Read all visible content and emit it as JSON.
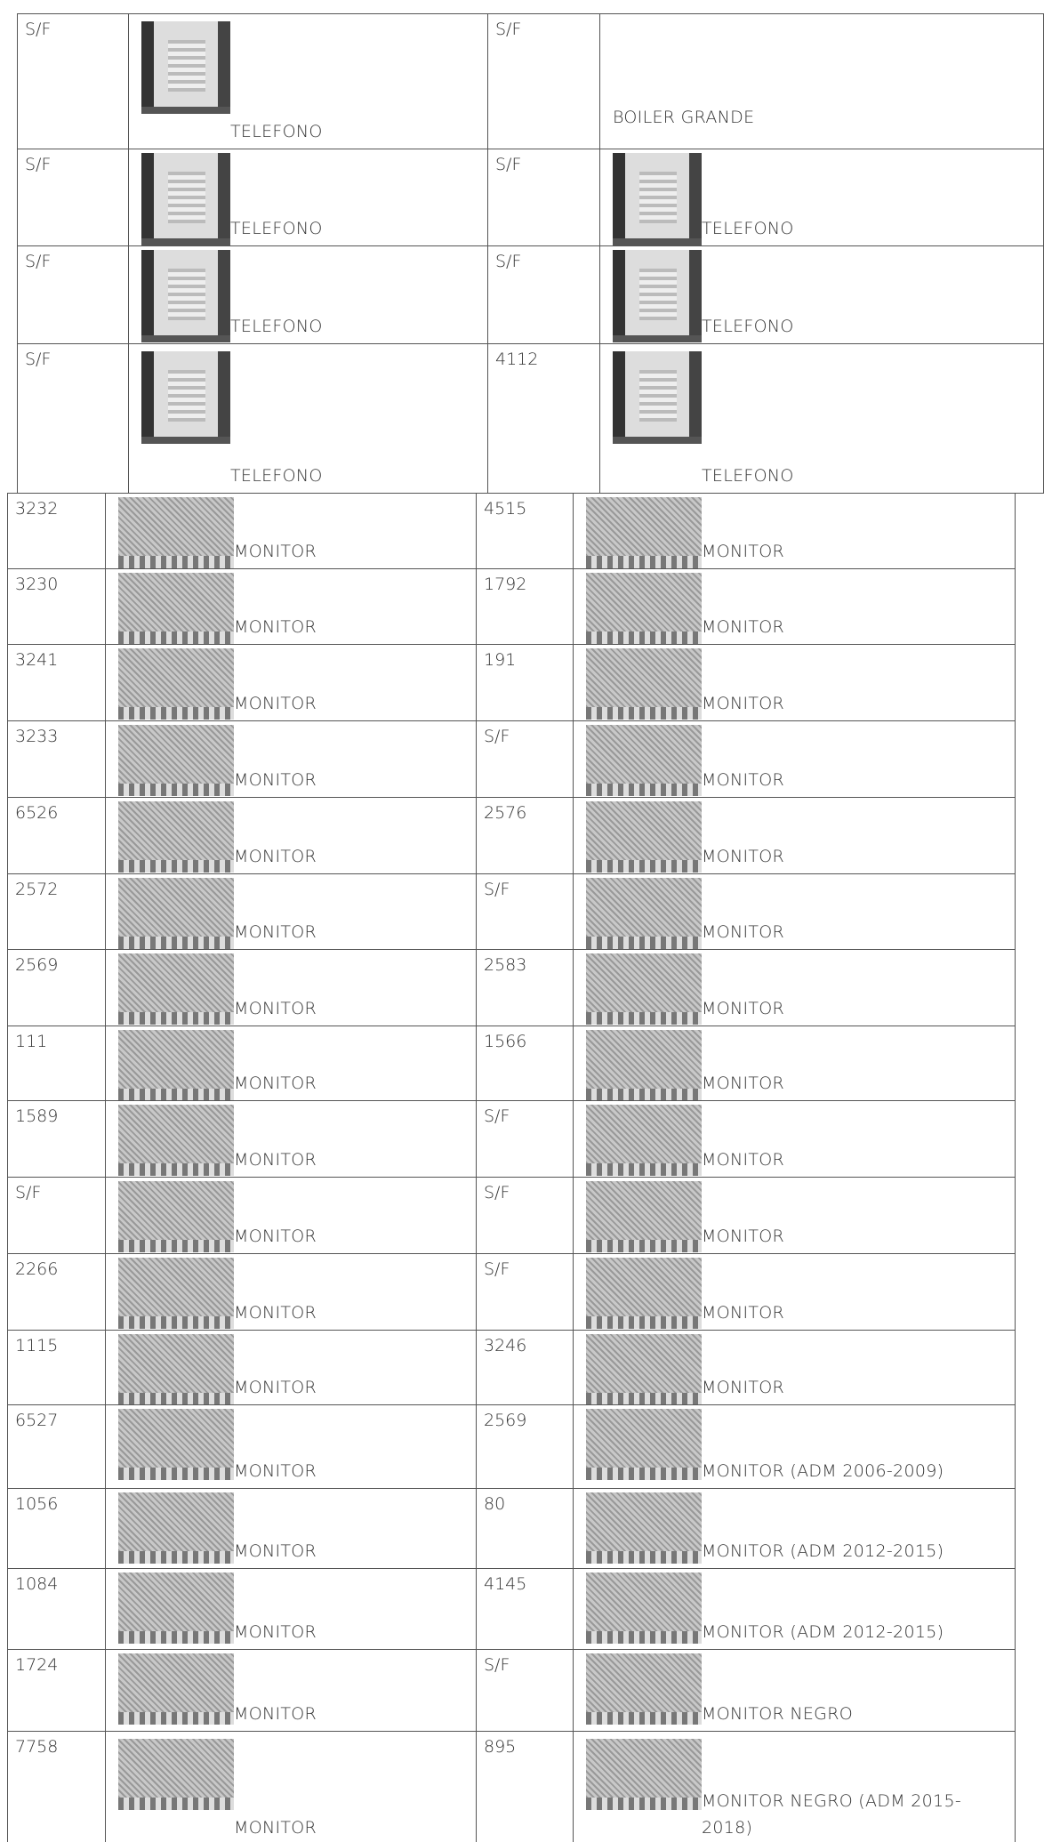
{
  "tables": [
    {
      "rows": [
        [
          "S/F",
          "TELEFONO",
          "S/F",
          "BOILER GRANDE"
        ],
        [
          "S/F",
          "TELEFONO",
          "S/F",
          "TELEFONO"
        ],
        [
          "S/F",
          "TELEFONO",
          "S/F",
          "TELEFONO"
        ],
        [
          "S/F",
          "TELEFONO",
          "4112",
          "TELEFONO"
        ]
      ]
    },
    {
      "rows": [
        [
          "3232",
          "MONITOR",
          "4515",
          "MONITOR"
        ],
        [
          "3230",
          "MONITOR",
          "1792",
          "MONITOR"
        ],
        [
          "3241",
          "MONITOR",
          "191",
          "MONITOR"
        ],
        [
          "3233",
          "MONITOR",
          "S/F",
          "MONITOR"
        ],
        [
          "6526",
          "MONITOR",
          "2576",
          "MONITOR"
        ],
        [
          "2572",
          "MONITOR",
          "S/F",
          "MONITOR"
        ],
        [
          "2569",
          "MONITOR",
          "2583",
          "MONITOR"
        ],
        [
          "111",
          "MONITOR",
          "1566",
          "MONITOR"
        ],
        [
          "1589",
          "MONITOR",
          "S/F",
          "MONITOR"
        ],
        [
          "S/F",
          "MONITOR",
          "S/F",
          "MONITOR"
        ],
        [
          "2266",
          "MONITOR",
          "S/F",
          "MONITOR"
        ],
        [
          "1115",
          "MONITOR",
          "3246",
          "MONITOR"
        ],
        [
          "6527",
          "MONITOR",
          "2569",
          "MONITOR (ADM 2006-2009)"
        ],
        [
          "1056",
          "MONITOR",
          "80",
          "MONITOR (ADM 2012-2015)"
        ],
        [
          "1084",
          "MONITOR",
          "4145",
          "MONITOR (ADM 2012-2015)"
        ],
        [
          "1724",
          "MONITOR",
          "S/F",
          "MONITOR NEGRO"
        ],
        [
          "7758",
          "MONITOR",
          "895",
          "MONITOR NEGRO (ADM 2015-2018)"
        ]
      ]
    }
  ]
}
